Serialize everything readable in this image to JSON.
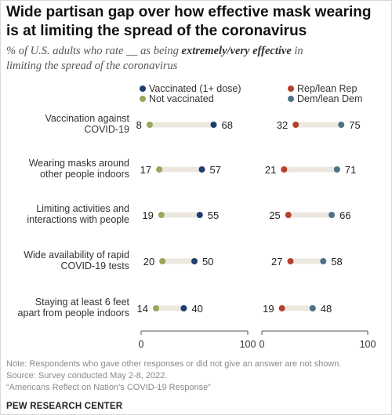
{
  "title_line1": "Wide partisan gap over how effective mask wearing",
  "title_line2": "is at limiting the spread of the coronavirus",
  "subtitle_pre": "% of U.S. adults who rate __ as being ",
  "subtitle_bold": "extremely/very effective",
  "subtitle_post": " in",
  "subtitle_line2": "limiting the spread of the coronavirus",
  "note_line1": "Note: Respondents who gave other responses or did not give an answer are not shown.",
  "note_line2": "Source: Survey conducted May 2-8, 2022.",
  "note_line3": "“Americans Reflect on Nation’s COVID-19 Response”",
  "brand": "PEW RESEARCH CENTER",
  "colors": {
    "vaccinated": "#1f3f6e",
    "not_vaccinated": "#9aa65a",
    "rep": "#b5402b",
    "dem": "#4f7186",
    "bar": "#ece8e0"
  },
  "chart_data": [
    {
      "type": "dot",
      "categories": [
        "Vaccination against COVID-19",
        "Wearing masks around other people indoors",
        "Limiting activities and interactions with people",
        "Wide availability of rapid COVID-19 tests",
        "Staying at least 6 feet apart from people indoors"
      ],
      "category_lines": [
        [
          "Vaccination against",
          "COVID-19"
        ],
        [
          "Wearing masks around",
          "other people indoors"
        ],
        [
          "Limiting activities and",
          "interactions with people"
        ],
        [
          "Wide availability of rapid",
          "COVID-19 tests"
        ],
        [
          "Staying at least 6 feet",
          "apart from people indoors"
        ]
      ],
      "series": [
        {
          "name": "Vaccinated (1+ dose)",
          "values": [
            68,
            57,
            55,
            50,
            40
          ]
        },
        {
          "name": "Not vaccinated",
          "values": [
            8,
            17,
            19,
            20,
            14
          ]
        }
      ],
      "xlim": [
        0,
        100
      ],
      "xticks": [
        "0",
        "100"
      ],
      "legend": "top"
    },
    {
      "type": "dot",
      "categories": [
        "Vaccination against COVID-19",
        "Wearing masks around other people indoors",
        "Limiting activities and interactions with people",
        "Wide availability of rapid COVID-19 tests",
        "Staying at least 6 feet apart from people indoors"
      ],
      "series": [
        {
          "name": "Rep/lean Rep",
          "values": [
            32,
            21,
            25,
            27,
            19
          ]
        },
        {
          "name": "Dem/lean Dem",
          "values": [
            75,
            71,
            66,
            58,
            48
          ]
        }
      ],
      "xlim": [
        0,
        100
      ],
      "xticks": [
        "0",
        "100"
      ],
      "legend": "top"
    }
  ]
}
